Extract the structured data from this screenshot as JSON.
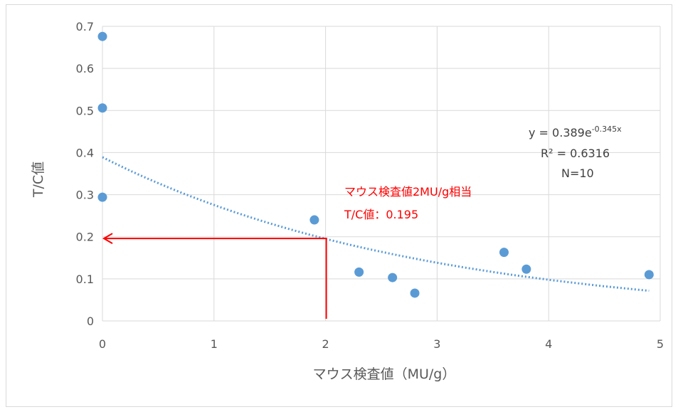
{
  "chart_data": {
    "type": "scatter",
    "xlabel": "マウス検査値（MU/g）",
    "ylabel": "T/C値",
    "xlim": [
      0,
      5
    ],
    "ylim": [
      0,
      0.7
    ],
    "x_ticks": [
      "0",
      "1",
      "2",
      "3",
      "4",
      "5"
    ],
    "y_ticks": [
      "0",
      "0.1",
      "0.2",
      "0.3",
      "0.4",
      "0.5",
      "0.6",
      "0.7"
    ],
    "grid": true,
    "series": [
      {
        "points": [
          {
            "x": 0,
            "y": 0.676
          },
          {
            "x": 0,
            "y": 0.506
          },
          {
            "x": 0,
            "y": 0.294
          },
          {
            "x": 1.9,
            "y": 0.24
          },
          {
            "x": 2.3,
            "y": 0.116
          },
          {
            "x": 2.6,
            "y": 0.103
          },
          {
            "x": 2.8,
            "y": 0.066
          },
          {
            "x": 3.6,
            "y": 0.163
          },
          {
            "x": 3.8,
            "y": 0.123
          },
          {
            "x": 4.9,
            "y": 0.11
          }
        ],
        "color": "#5b9bd5"
      }
    ],
    "trendline": {
      "type": "exponential",
      "a": 0.389,
      "b": -0.345,
      "x_range": [
        0,
        4.9
      ],
      "color": "#5b9bd5"
    },
    "equation_lines": [
      "y = 0.389e",
      "-0.345x",
      "R² = 0.6316",
      "N=10"
    ],
    "annotation": {
      "lines": [
        "マウス検査値2MU/g相当",
        "T/C値：0.195"
      ],
      "x": 2,
      "y": 0.195,
      "color": "#ff0000"
    }
  }
}
